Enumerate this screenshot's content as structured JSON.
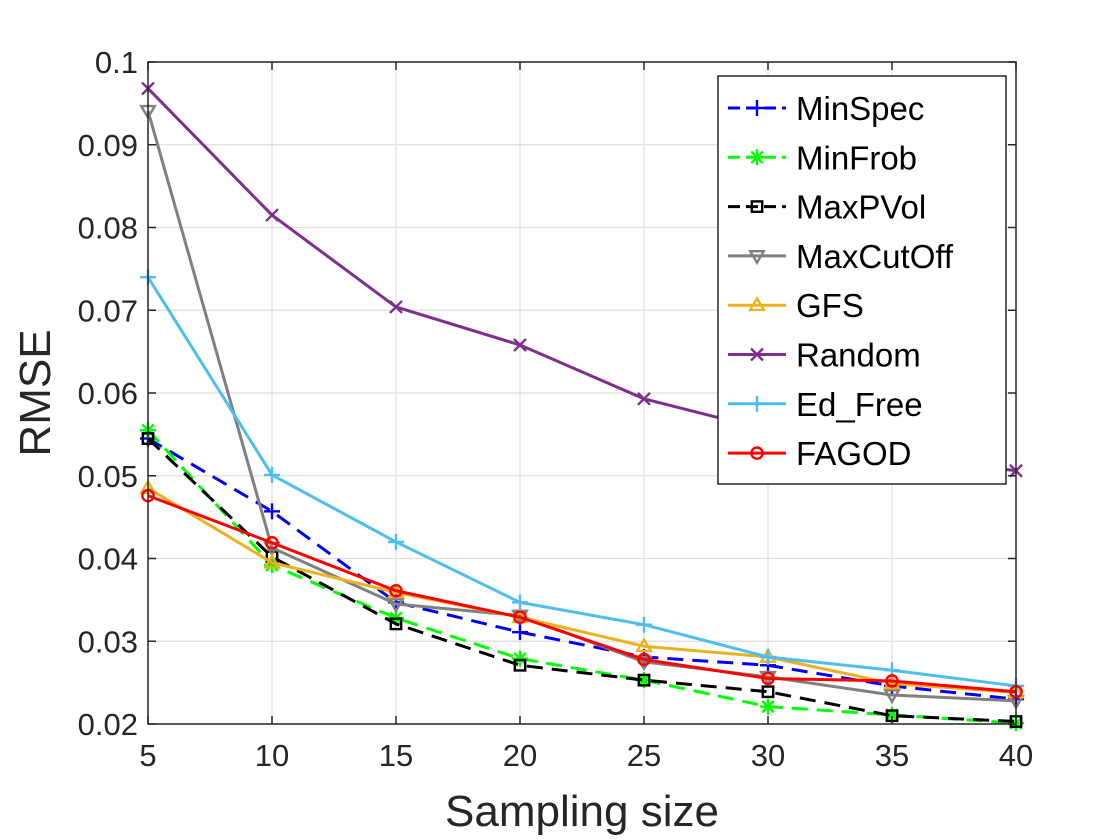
{
  "chart_data": {
    "type": "line",
    "title": "",
    "xlabel": "Sampling size",
    "ylabel": "RMSE",
    "x": [
      5,
      10,
      15,
      20,
      25,
      30,
      35,
      40
    ],
    "xlim": [
      5,
      40
    ],
    "ylim": [
      0.02,
      0.1
    ],
    "xticks": [
      "5",
      "10",
      "15",
      "20",
      "25",
      "30",
      "35",
      "40"
    ],
    "yticks": [
      "0.02",
      "0.03",
      "0.04",
      "0.05",
      "0.06",
      "0.07",
      "0.08",
      "0.09",
      "0.1"
    ],
    "grid": true,
    "legend_position": "top-right",
    "series": [
      {
        "name": "MinSpec",
        "color": "#0000ff",
        "dash": "dashed",
        "marker": "plus",
        "values": [
          0.0545,
          0.0457,
          0.0347,
          0.0311,
          0.0281,
          0.0271,
          0.0246,
          0.023
        ]
      },
      {
        "name": "MinFrob",
        "color": "#00ff00",
        "dash": "dashed",
        "marker": "asterisk",
        "values": [
          0.0555,
          0.0392,
          0.0328,
          0.0279,
          0.0253,
          0.0221,
          0.0211,
          0.0201
        ]
      },
      {
        "name": "MaxPVol",
        "color": "#000000",
        "dash": "dashed",
        "marker": "square",
        "values": [
          0.0545,
          0.0402,
          0.0321,
          0.0271,
          0.0253,
          0.0239,
          0.021,
          0.0203
        ]
      },
      {
        "name": "MaxCutOff",
        "color": "#808080",
        "dash": "solid",
        "marker": "triangle-down",
        "values": [
          0.0941,
          0.0413,
          0.0345,
          0.0331,
          0.0275,
          0.0257,
          0.0235,
          0.0228
        ]
      },
      {
        "name": "GFS",
        "color": "#edb120",
        "dash": "solid",
        "marker": "triangle-up",
        "values": [
          0.0485,
          0.0395,
          0.0359,
          0.0329,
          0.0294,
          0.0281,
          0.0249,
          0.0238
        ]
      },
      {
        "name": "Random",
        "color": "#7e2f8e",
        "dash": "solid",
        "marker": "x",
        "values": [
          0.0968,
          0.0815,
          0.0704,
          0.0658,
          0.0593,
          0.0555,
          0.0525,
          0.0506
        ]
      },
      {
        "name": "Ed_Free",
        "color": "#4dbeee",
        "dash": "solid",
        "marker": "plus",
        "values": [
          0.074,
          0.0501,
          0.042,
          0.0347,
          0.032,
          0.0281,
          0.0265,
          0.0246
        ]
      },
      {
        "name": "FAGOD",
        "color": "#ff0000",
        "dash": "solid",
        "marker": "circle",
        "values": [
          0.0476,
          0.0419,
          0.0361,
          0.0329,
          0.0278,
          0.0255,
          0.0252,
          0.0239
        ]
      }
    ]
  }
}
